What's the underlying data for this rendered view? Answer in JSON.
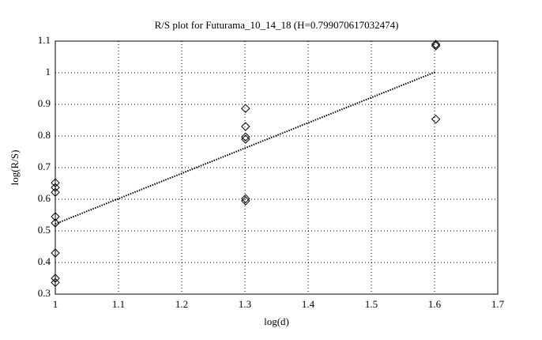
{
  "chart_data": {
    "type": "scatter",
    "title": "R/S plot for Futurama_10_14_18 (H=0.799070617032474)",
    "x_label": "log(d)",
    "y_label": "log(R/S)",
    "points": {
      "x": [
        1,
        1,
        1,
        1,
        1,
        1,
        1,
        1,
        1.301,
        1.301,
        1.301,
        1.301,
        1.301,
        1.301,
        1.602,
        1.602,
        1.602
      ],
      "y": [
        0.652,
        0.637,
        0.622,
        0.545,
        0.525,
        0.43,
        0.35,
        0.337,
        0.887,
        0.83,
        0.797,
        0.79,
        0.602,
        0.595,
        1.09,
        1.085,
        0.853
      ],
      "color": "#000000"
    },
    "fit": {
      "x": [
        1,
        1.602
      ],
      "y": [
        0.522,
        1.003
      ],
      "color": "#000000"
    },
    "xlim": [
      1,
      1.7
    ],
    "ylim": [
      0.3,
      1.1
    ],
    "xticks": [
      1,
      1.1,
      1.2,
      1.3,
      1.4,
      1.5,
      1.6,
      1.7
    ],
    "yticks": [
      0.3,
      0.4,
      0.5,
      0.6,
      0.7,
      0.8,
      0.9,
      1,
      1.1
    ],
    "grid": true
  }
}
